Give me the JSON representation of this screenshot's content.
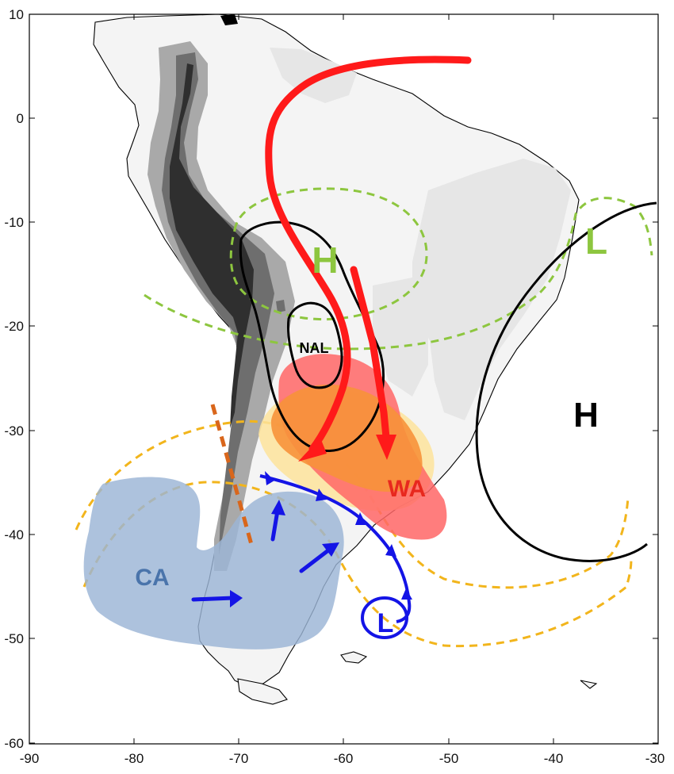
{
  "chart_data": {
    "type": "map",
    "xlim": [
      -90,
      -30
    ],
    "ylim": [
      -60,
      10
    ],
    "x_ticks": [
      "-90",
      "-80",
      "-70",
      "-60",
      "-50",
      "-40",
      "-30"
    ],
    "y_ticks": [
      "10",
      "0",
      "-10",
      "-20",
      "-30",
      "-40",
      "-50",
      "-60"
    ],
    "labels": {
      "high_tropical": "H",
      "low_atlantic": "L",
      "nal": "NAL",
      "wa": "WA",
      "high_atlantic": "H",
      "ca": "CA",
      "low_south": "L"
    },
    "colors": {
      "green_dash": "#8dc63f",
      "red_arrow": "#ff1a1a",
      "orange_dash": "#f2b51c",
      "front_blue": "#1414e6",
      "cold_air_fill": "#9bb4d6",
      "ca_text": "#4a74ab",
      "wa_text": "#e8281e",
      "orange_core": "#f7923a",
      "pale_yellow": "#fde39b",
      "red_zone": "#ff6666",
      "brown_dash": "#d9661b"
    }
  }
}
